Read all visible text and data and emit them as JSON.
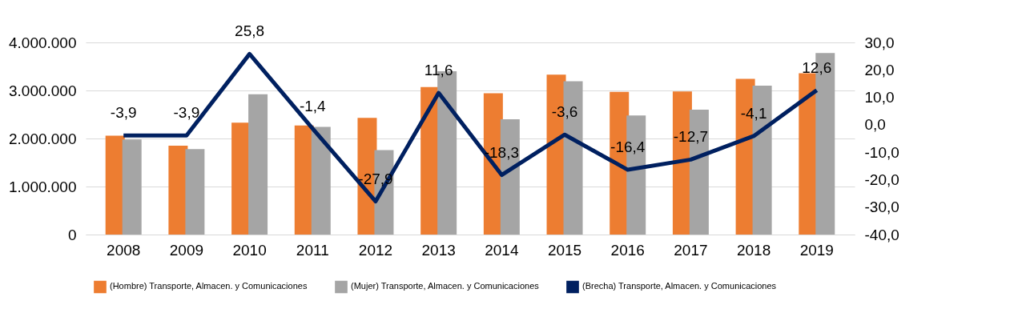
{
  "chart_data": {
    "type": "bar",
    "categories": [
      "2008",
      "2009",
      "2010",
      "2011",
      "2012",
      "2013",
      "2014",
      "2015",
      "2016",
      "2017",
      "2018",
      "2019"
    ],
    "series": [
      {
        "name": "(Hombre) Transporte, Almacen. y Comunicaciones",
        "color": "#ed7d31",
        "values": [
          2060000,
          1850000,
          2330000,
          2270000,
          2430000,
          3070000,
          2940000,
          3330000,
          2970000,
          2980000,
          3240000,
          3360000
        ]
      },
      {
        "name": "(Mujer) Transporte, Almacen. y Comunicaciones",
        "color": "#a5a5a5",
        "values": [
          1980000,
          1780000,
          2920000,
          2240000,
          1760000,
          3400000,
          2400000,
          3190000,
          2480000,
          2600000,
          3100000,
          3780000
        ]
      },
      {
        "name": "(Brecha) Transporte, Almacen. y Comunicaciones",
        "type": "line",
        "axis": "y2",
        "color": "#002060",
        "values": [
          -3.9,
          -3.9,
          25.8,
          -1.4,
          -27.9,
          11.6,
          -18.3,
          -3.6,
          -16.4,
          -12.7,
          -4.1,
          12.6
        ],
        "value_labels": [
          "-3,9",
          "-3,9",
          "25,8",
          "-1,4",
          "-27,9",
          "11,6",
          "-18,3",
          "-3,6",
          "-16,4",
          "-12,7",
          "-4,1",
          "12,6"
        ]
      }
    ],
    "ylim": [
      0,
      4000000
    ],
    "yticks": [
      0,
      {
        "value": 1000000,
        "label": "1.000.000"
      },
      {
        "value": 2000000,
        "label": "2.000.000"
      },
      {
        "value": 3000000,
        "label": "3.000.000"
      },
      {
        "value": 4000000,
        "label": "4.000.000"
      }
    ],
    "y2lim": [
      -40,
      30
    ],
    "y2ticks": [
      {
        "value": -40,
        "label": "-40,0"
      },
      {
        "value": -30,
        "label": "-30,0"
      },
      {
        "value": -20,
        "label": "-20,0"
      },
      {
        "value": -10,
        "label": "-10,0"
      },
      {
        "value": 0,
        "label": "0,0"
      },
      {
        "value": 10,
        "label": "10,0"
      },
      {
        "value": 20,
        "label": "20,0"
      },
      {
        "value": 30,
        "label": "30,0"
      }
    ],
    "grid": "y",
    "legend": "bottom",
    "marker": "none",
    "line_style": "solid"
  }
}
